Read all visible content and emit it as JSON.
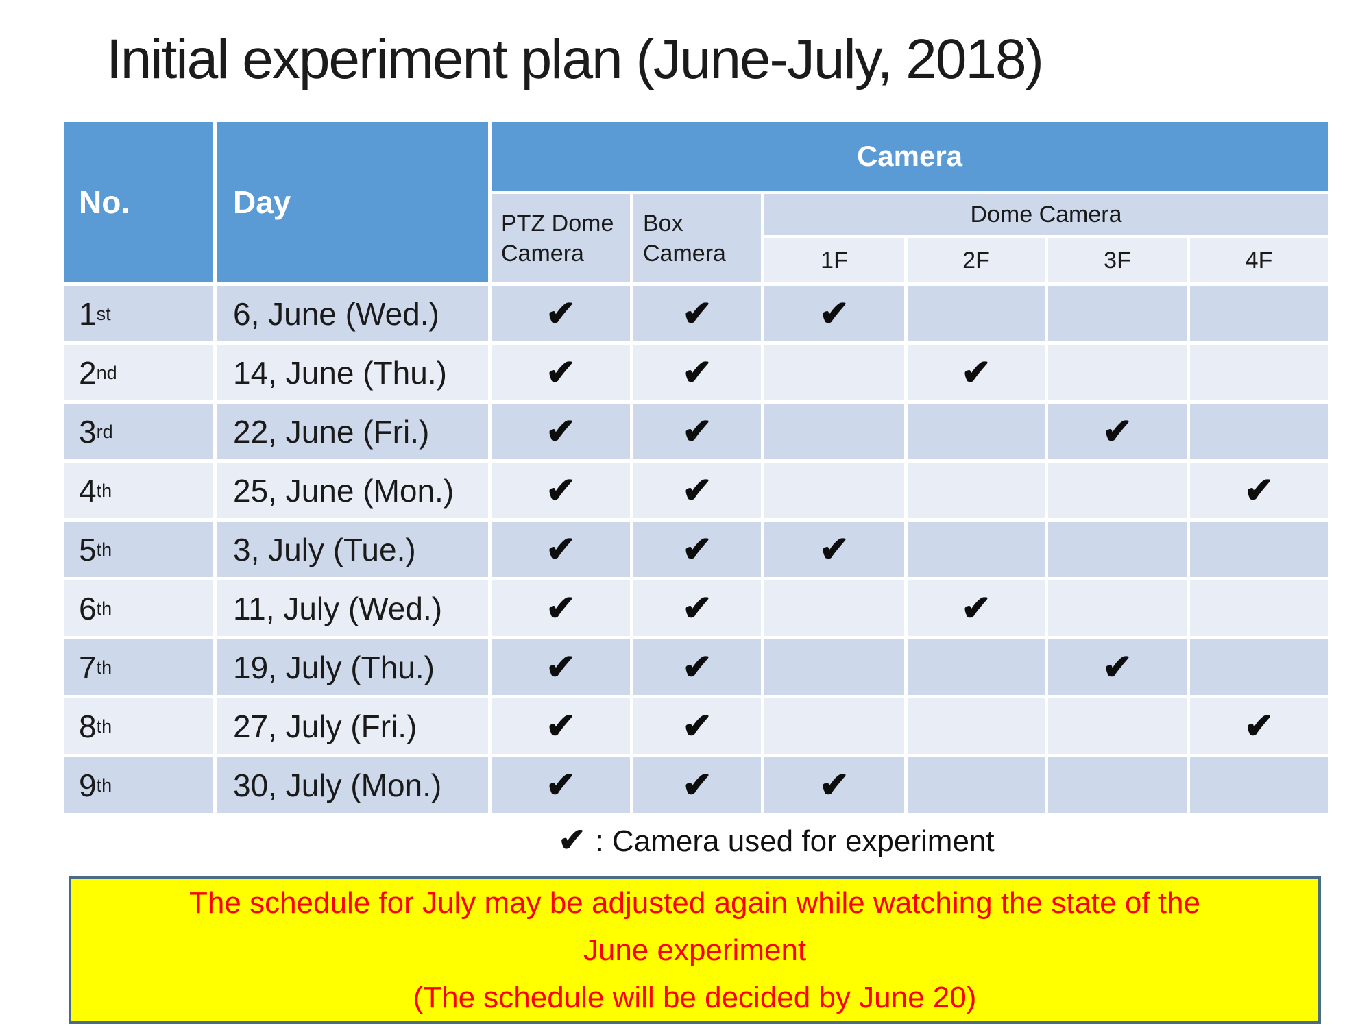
{
  "title": "Initial experiment plan (June-July, 2018)",
  "colors": {
    "header_blue": "#5b9bd5",
    "row_dark": "#cdd8eb",
    "row_light": "#e9edf6",
    "note_bg": "#ffff00",
    "note_text": "#ff0000",
    "note_border": "#4a6b85"
  },
  "table": {
    "col_no": "No.",
    "col_day": "Day",
    "col_camera": "Camera",
    "col_ptz": "PTZ Dome Camera",
    "col_box": "Box Camera",
    "col_dome": "Dome Camera",
    "floors": [
      "1F",
      "2F",
      "3F",
      "4F"
    ],
    "check": "✔",
    "rows": [
      {
        "no": "1",
        "suffix": "st",
        "day": "6, June (Wed.)",
        "ptz": true,
        "box": true,
        "dome": "1F"
      },
      {
        "no": "2",
        "suffix": "nd",
        "day": "14, June (Thu.)",
        "ptz": true,
        "box": true,
        "dome": "2F"
      },
      {
        "no": "3",
        "suffix": "rd",
        "day": "22, June (Fri.)",
        "ptz": true,
        "box": true,
        "dome": "3F"
      },
      {
        "no": "4",
        "suffix": "th",
        "day": "25, June (Mon.)",
        "ptz": true,
        "box": true,
        "dome": "4F"
      },
      {
        "no": "5",
        "suffix": "th",
        "day": "3, July (Tue.)",
        "ptz": true,
        "box": true,
        "dome": "1F"
      },
      {
        "no": "6",
        "suffix": "th",
        "day": "11, July (Wed.)",
        "ptz": true,
        "box": true,
        "dome": "2F"
      },
      {
        "no": "7",
        "suffix": "th",
        "day": "19, July (Thu.)",
        "ptz": true,
        "box": true,
        "dome": "3F"
      },
      {
        "no": "8",
        "suffix": "th",
        "day": "27, July (Fri.)",
        "ptz": true,
        "box": true,
        "dome": "4F"
      },
      {
        "no": "9",
        "suffix": "th",
        "day": "30, July (Mon.)",
        "ptz": true,
        "box": true,
        "dome": "1F"
      }
    ]
  },
  "legend": {
    "symbol": "✔",
    "text": ":  Camera used for experiment"
  },
  "note": {
    "lines": [
      "The schedule for July may be adjusted again while watching the state of the",
      "June experiment",
      "(The schedule will be decided by June 20)"
    ]
  }
}
